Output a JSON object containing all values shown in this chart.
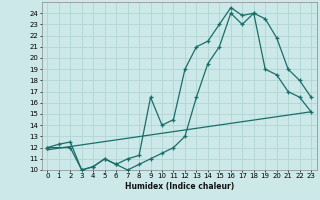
{
  "xlabel": "Humidex (Indice chaleur)",
  "bg_color": "#cce8e8",
  "grid_color": "#b0d4d4",
  "line_color": "#1a6e6a",
  "xlim": [
    -0.5,
    23.5
  ],
  "ylim": [
    10,
    25
  ],
  "xticks": [
    0,
    1,
    2,
    3,
    4,
    5,
    6,
    7,
    8,
    9,
    10,
    11,
    12,
    13,
    14,
    15,
    16,
    17,
    18,
    19,
    20,
    21,
    22,
    23
  ],
  "yticks": [
    10,
    11,
    12,
    13,
    14,
    15,
    16,
    17,
    18,
    19,
    20,
    21,
    22,
    23,
    24
  ],
  "line1_x": [
    0,
    1,
    2,
    3,
    4,
    5,
    6,
    7,
    8,
    9,
    10,
    11,
    12,
    13,
    14,
    15,
    16,
    17,
    18,
    19,
    20,
    21,
    22,
    23
  ],
  "line1_y": [
    12,
    12.3,
    12.5,
    10,
    10.3,
    11,
    10.5,
    11,
    11.3,
    16.5,
    14,
    14.5,
    19,
    21,
    21.5,
    23,
    24.5,
    23.8,
    24,
    23.5,
    21.8,
    19,
    18,
    16.5
  ],
  "line2_x": [
    0,
    2,
    3,
    4,
    5,
    6,
    7,
    8,
    9,
    10,
    11,
    12,
    13,
    14,
    15,
    16,
    17,
    18,
    19,
    20,
    21,
    22,
    23
  ],
  "line2_y": [
    12,
    12,
    10,
    10.3,
    11,
    10.5,
    10,
    10.5,
    11,
    11.5,
    12,
    13,
    16.5,
    19.5,
    21,
    24,
    23,
    24,
    19,
    18.5,
    17,
    16.5,
    15.2
  ],
  "line3_x": [
    0,
    23
  ],
  "line3_y": [
    11.8,
    15.2
  ]
}
